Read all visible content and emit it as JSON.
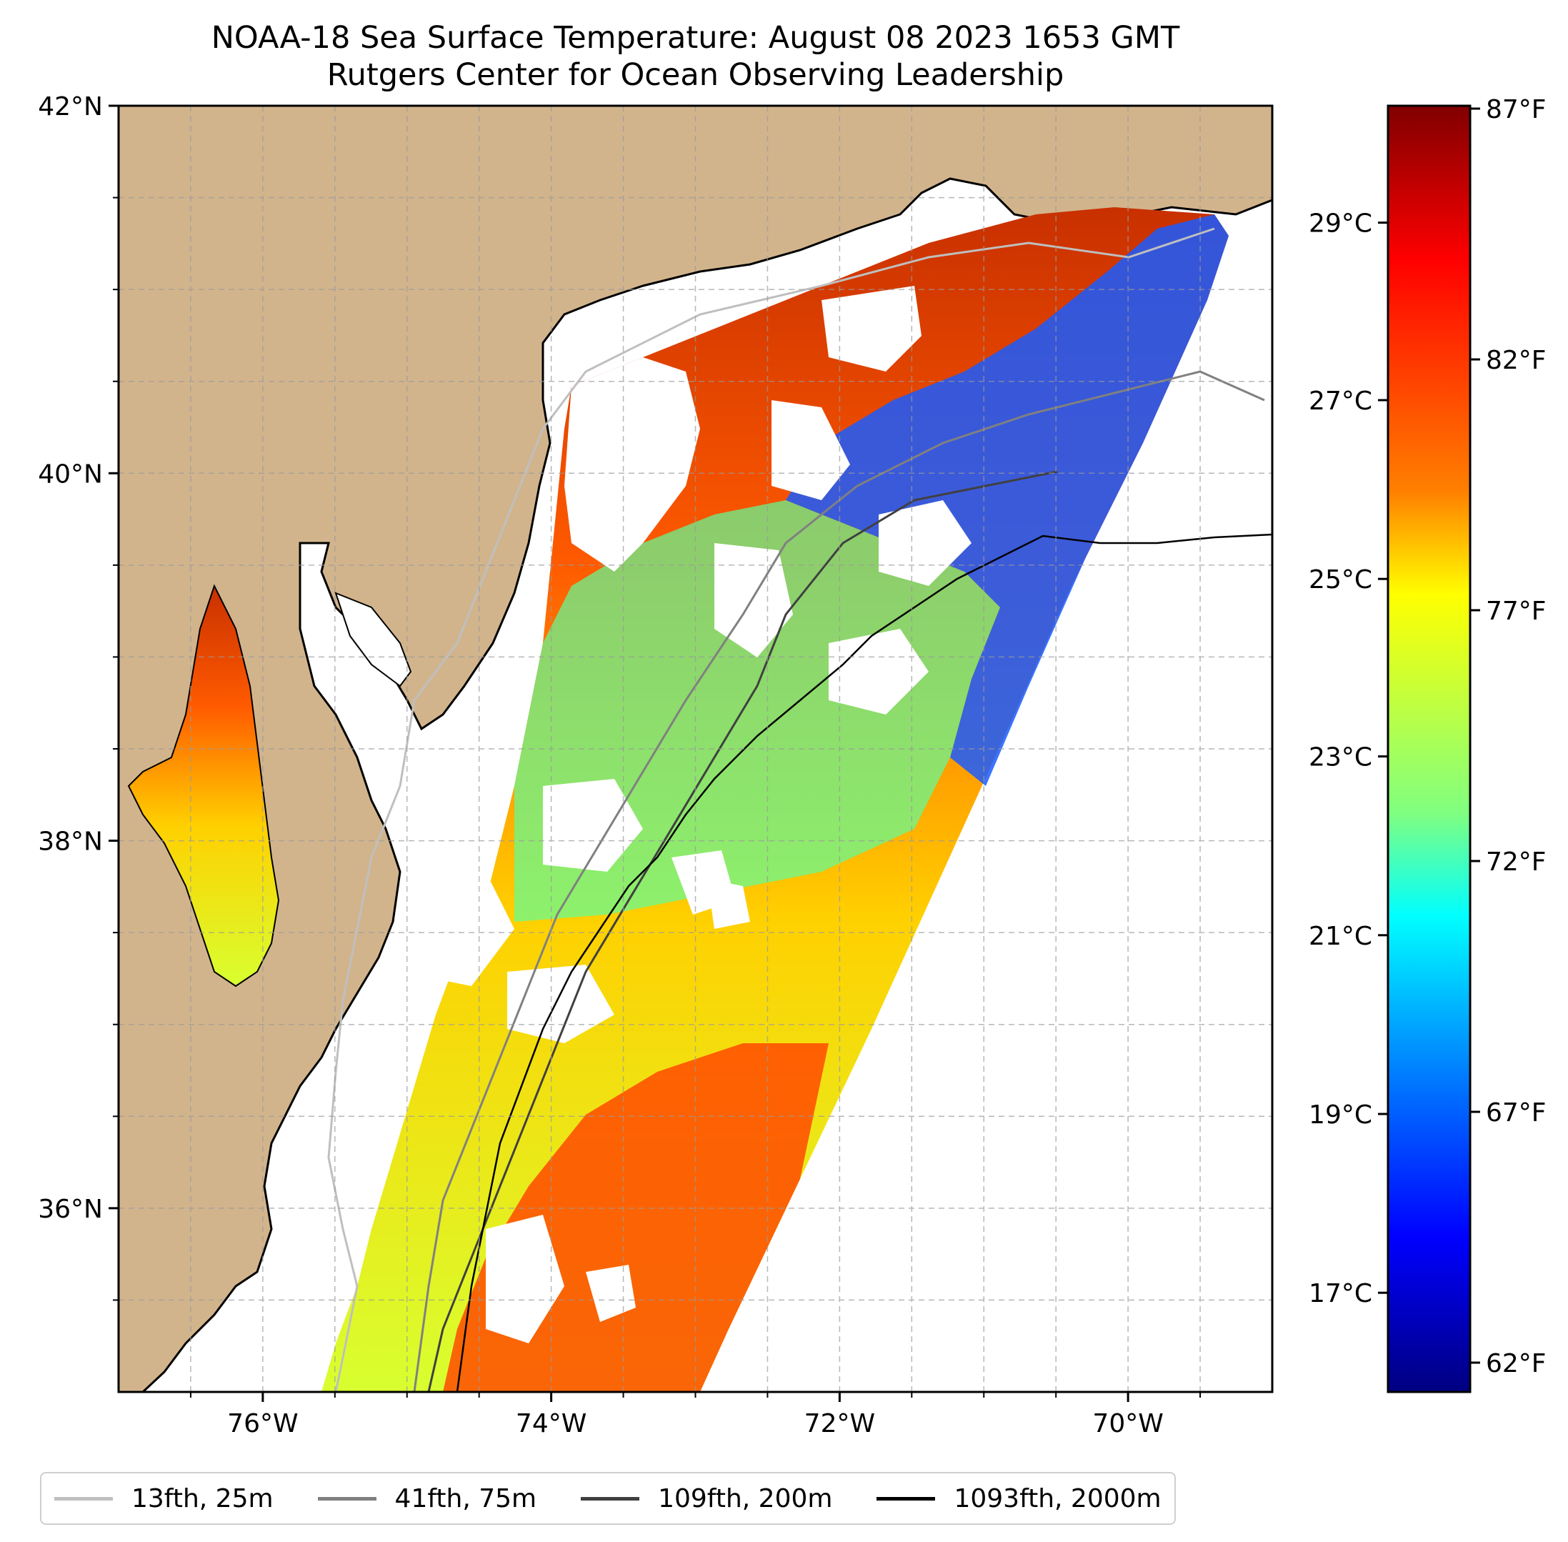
{
  "title_line1": "NOAA-18 Sea Surface Temperature: August 08 2023 1653 GMT",
  "title_line2": "Rutgers Center for Ocean Observing Leadership",
  "map": {
    "lat_ticks": [
      {
        "value": 42,
        "label": "42°N"
      },
      {
        "value": 40,
        "label": "40°N"
      },
      {
        "value": 38,
        "label": "38°N"
      },
      {
        "value": 36,
        "label": "36°N"
      }
    ],
    "lon_ticks": [
      {
        "value": -76,
        "label": "76°W"
      },
      {
        "value": -74,
        "label": "74°W"
      },
      {
        "value": -72,
        "label": "72°W"
      },
      {
        "value": -70,
        "label": "70°W"
      }
    ],
    "lon_range": [
      -77,
      -69
    ],
    "lat_range": [
      35,
      42
    ],
    "land_color": "#d2b48c",
    "gridlines": true
  },
  "colorbar": {
    "fahrenheit_ticks": [
      "87°F",
      "82°F",
      "77°F",
      "72°F",
      "67°F",
      "62°F"
    ],
    "celsius_ticks": [
      "29°C",
      "27°C",
      "25°C",
      "23°C",
      "21°C",
      "19°C",
      "17°C"
    ],
    "colormap": "jet",
    "colors": [
      "#800000",
      "#ff0000",
      "#ff8000",
      "#ffff00",
      "#80ff80",
      "#00ffff",
      "#0080ff",
      "#0000ff",
      "#000080"
    ]
  },
  "legend": [
    {
      "label": "13fth, 25m",
      "color": "#bfbfbf"
    },
    {
      "label": "41fth, 75m",
      "color": "#808080"
    },
    {
      "label": "109fth, 200m",
      "color": "#404040"
    },
    {
      "label": "1093fth, 2000m",
      "color": "#000000"
    }
  ]
}
